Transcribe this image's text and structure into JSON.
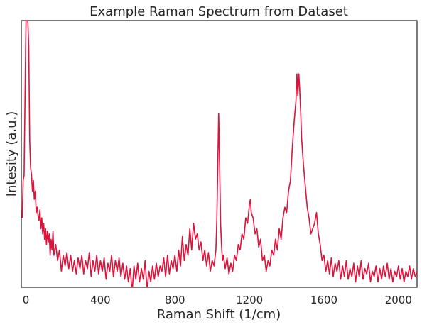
{
  "chart_data": {
    "type": "line",
    "title": "Example Raman Spectrum from Dataset",
    "xlabel": "Raman Shift (1/cm)",
    "ylabel": "Intesity (a.u.)",
    "xlim": [
      -25,
      2100
    ],
    "ylim": [
      0,
      1
    ],
    "x_ticks": [
      0,
      400,
      800,
      1200,
      1600,
      2000
    ],
    "y_ticks_shown": false,
    "grid": false,
    "legend": "none",
    "line_color": "#dc143c",
    "series": [
      {
        "points": [
          [
            -20,
            0.26
          ],
          [
            -15,
            0.4
          ],
          [
            -10,
            0.42
          ],
          [
            -5,
            0.7
          ],
          [
            0,
            1.0
          ],
          [
            5,
            1.0
          ],
          [
            10,
            1.0
          ],
          [
            15,
            0.9
          ],
          [
            20,
            0.55
          ],
          [
            25,
            0.45
          ],
          [
            30,
            0.42
          ],
          [
            35,
            0.36
          ],
          [
            40,
            0.4
          ],
          [
            45,
            0.33
          ],
          [
            50,
            0.36
          ],
          [
            55,
            0.28
          ],
          [
            60,
            0.3
          ],
          [
            65,
            0.27
          ],
          [
            70,
            0.25
          ],
          [
            75,
            0.29
          ],
          [
            80,
            0.22
          ],
          [
            85,
            0.26
          ],
          [
            90,
            0.2
          ],
          [
            95,
            0.24
          ],
          [
            100,
            0.18
          ],
          [
            105,
            0.22
          ],
          [
            110,
            0.16
          ],
          [
            115,
            0.21
          ],
          [
            120,
            0.17
          ],
          [
            125,
            0.2
          ],
          [
            130,
            0.12
          ],
          [
            135,
            0.18
          ],
          [
            140,
            0.14
          ],
          [
            145,
            0.21
          ],
          [
            150,
            0.12
          ],
          [
            160,
            0.16
          ],
          [
            170,
            0.1
          ],
          [
            180,
            0.14
          ],
          [
            190,
            0.06
          ],
          [
            200,
            0.12
          ],
          [
            210,
            0.08
          ],
          [
            220,
            0.13
          ],
          [
            230,
            0.07
          ],
          [
            240,
            0.12
          ],
          [
            250,
            0.06
          ],
          [
            260,
            0.1
          ],
          [
            270,
            0.05
          ],
          [
            280,
            0.11
          ],
          [
            290,
            0.07
          ],
          [
            300,
            0.12
          ],
          [
            310,
            0.05
          ],
          [
            320,
            0.1
          ],
          [
            330,
            0.07
          ],
          [
            340,
            0.13
          ],
          [
            350,
            0.04
          ],
          [
            360,
            0.1
          ],
          [
            370,
            0.06
          ],
          [
            380,
            0.12
          ],
          [
            390,
            0.05
          ],
          [
            400,
            0.1
          ],
          [
            410,
            0.06
          ],
          [
            420,
            0.11
          ],
          [
            430,
            0.03
          ],
          [
            440,
            0.09
          ],
          [
            450,
            0.06
          ],
          [
            460,
            0.12
          ],
          [
            470,
            0.04
          ],
          [
            480,
            0.1
          ],
          [
            490,
            0.06
          ],
          [
            500,
            0.11
          ],
          [
            510,
            0.04
          ],
          [
            520,
            0.09
          ],
          [
            530,
            0.03
          ],
          [
            540,
            0.08
          ],
          [
            550,
            0.02
          ],
          [
            560,
            0.07
          ],
          [
            570,
            -0.02
          ],
          [
            580,
            0.08
          ],
          [
            590,
            0.03
          ],
          [
            600,
            0.09
          ],
          [
            610,
            0.02
          ],
          [
            620,
            0.07
          ],
          [
            630,
            0.03
          ],
          [
            640,
            0.1
          ],
          [
            650,
            -0.01
          ],
          [
            660,
            0.06
          ],
          [
            670,
            0.02
          ],
          [
            680,
            0.08
          ],
          [
            690,
            0.03
          ],
          [
            700,
            0.09
          ],
          [
            710,
            0.04
          ],
          [
            720,
            0.08
          ],
          [
            730,
            0.06
          ],
          [
            740,
            0.11
          ],
          [
            750,
            0.04
          ],
          [
            760,
            0.12
          ],
          [
            770,
            0.05
          ],
          [
            780,
            0.1
          ],
          [
            790,
            0.07
          ],
          [
            800,
            0.12
          ],
          [
            810,
            0.06
          ],
          [
            820,
            0.14
          ],
          [
            830,
            0.08
          ],
          [
            840,
            0.19
          ],
          [
            850,
            0.1
          ],
          [
            860,
            0.16
          ],
          [
            870,
            0.12
          ],
          [
            880,
            0.22
          ],
          [
            890,
            0.14
          ],
          [
            900,
            0.24
          ],
          [
            910,
            0.18
          ],
          [
            920,
            0.2
          ],
          [
            930,
            0.14
          ],
          [
            940,
            0.17
          ],
          [
            950,
            0.1
          ],
          [
            960,
            0.14
          ],
          [
            970,
            0.08
          ],
          [
            980,
            0.13
          ],
          [
            990,
            0.06
          ],
          [
            1000,
            0.1
          ],
          [
            1010,
            0.08
          ],
          [
            1020,
            0.14
          ],
          [
            1025,
            0.25
          ],
          [
            1030,
            0.45
          ],
          [
            1035,
            0.65
          ],
          [
            1040,
            0.45
          ],
          [
            1045,
            0.24
          ],
          [
            1050,
            0.16
          ],
          [
            1055,
            0.1
          ],
          [
            1060,
            0.12
          ],
          [
            1070,
            0.07
          ],
          [
            1080,
            0.11
          ],
          [
            1090,
            0.05
          ],
          [
            1100,
            0.09
          ],
          [
            1110,
            0.06
          ],
          [
            1120,
            0.12
          ],
          [
            1130,
            0.1
          ],
          [
            1140,
            0.16
          ],
          [
            1150,
            0.14
          ],
          [
            1160,
            0.2
          ],
          [
            1170,
            0.18
          ],
          [
            1180,
            0.26
          ],
          [
            1190,
            0.24
          ],
          [
            1200,
            0.31
          ],
          [
            1205,
            0.33
          ],
          [
            1210,
            0.28
          ],
          [
            1220,
            0.26
          ],
          [
            1230,
            0.2
          ],
          [
            1240,
            0.22
          ],
          [
            1250,
            0.15
          ],
          [
            1260,
            0.18
          ],
          [
            1270,
            0.1
          ],
          [
            1280,
            0.12
          ],
          [
            1290,
            0.06
          ],
          [
            1300,
            0.1
          ],
          [
            1310,
            0.08
          ],
          [
            1320,
            0.14
          ],
          [
            1330,
            0.12
          ],
          [
            1340,
            0.18
          ],
          [
            1350,
            0.14
          ],
          [
            1360,
            0.22
          ],
          [
            1370,
            0.18
          ],
          [
            1380,
            0.26
          ],
          [
            1390,
            0.3
          ],
          [
            1400,
            0.28
          ],
          [
            1410,
            0.36
          ],
          [
            1420,
            0.4
          ],
          [
            1430,
            0.52
          ],
          [
            1440,
            0.62
          ],
          [
            1450,
            0.7
          ],
          [
            1455,
            0.8
          ],
          [
            1460,
            0.72
          ],
          [
            1465,
            0.8
          ],
          [
            1470,
            0.74
          ],
          [
            1475,
            0.66
          ],
          [
            1480,
            0.56
          ],
          [
            1490,
            0.46
          ],
          [
            1500,
            0.38
          ],
          [
            1510,
            0.3
          ],
          [
            1520,
            0.26
          ],
          [
            1530,
            0.2
          ],
          [
            1540,
            0.22
          ],
          [
            1550,
            0.24
          ],
          [
            1560,
            0.28
          ],
          [
            1570,
            0.2
          ],
          [
            1580,
            0.16
          ],
          [
            1590,
            0.1
          ],
          [
            1600,
            0.12
          ],
          [
            1610,
            0.06
          ],
          [
            1620,
            0.1
          ],
          [
            1630,
            0.05
          ],
          [
            1640,
            0.11
          ],
          [
            1650,
            0.04
          ],
          [
            1660,
            0.09
          ],
          [
            1670,
            0.06
          ],
          [
            1680,
            0.1
          ],
          [
            1690,
            0.03
          ],
          [
            1700,
            0.08
          ],
          [
            1710,
            0.04
          ],
          [
            1720,
            0.1
          ],
          [
            1730,
            0.03
          ],
          [
            1740,
            0.07
          ],
          [
            1750,
            0.04
          ],
          [
            1760,
            0.09
          ],
          [
            1770,
            0.02
          ],
          [
            1780,
            0.08
          ],
          [
            1790,
            0.04
          ],
          [
            1800,
            0.1
          ],
          [
            1810,
            0.03
          ],
          [
            1820,
            0.07
          ],
          [
            1830,
            0.05
          ],
          [
            1840,
            0.09
          ],
          [
            1850,
            0.02
          ],
          [
            1860,
            0.06
          ],
          [
            1870,
            0.04
          ],
          [
            1880,
            0.08
          ],
          [
            1890,
            0.02
          ],
          [
            1900,
            0.07
          ],
          [
            1910,
            0.03
          ],
          [
            1920,
            0.08
          ],
          [
            1930,
            0.04
          ],
          [
            1940,
            0.09
          ],
          [
            1950,
            0.03
          ],
          [
            1960,
            0.07
          ],
          [
            1970,
            0.02
          ],
          [
            1980,
            0.06
          ],
          [
            1990,
            0.04
          ],
          [
            2000,
            0.08
          ],
          [
            2010,
            0.03
          ],
          [
            2020,
            0.07
          ],
          [
            2030,
            0.02
          ],
          [
            2040,
            0.06
          ],
          [
            2050,
            0.04
          ],
          [
            2060,
            0.08
          ],
          [
            2070,
            0.03
          ],
          [
            2080,
            0.07
          ],
          [
            2090,
            0.04
          ],
          [
            2100,
            0.06
          ]
        ]
      }
    ]
  }
}
